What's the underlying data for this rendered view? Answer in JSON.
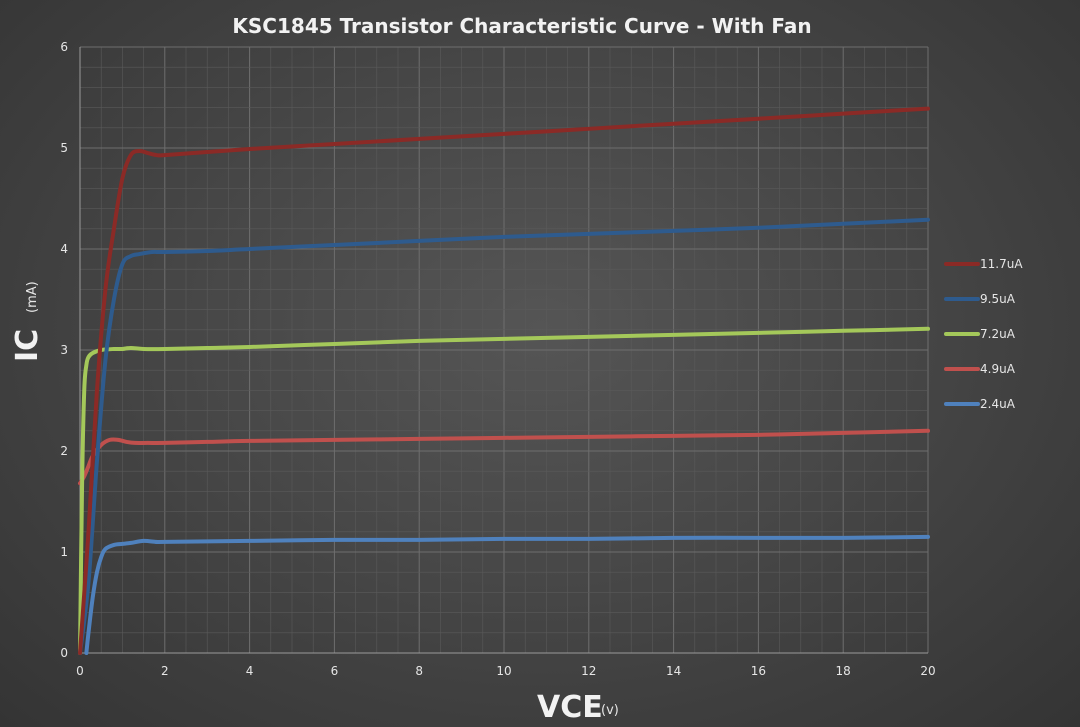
{
  "chart_data": {
    "type": "line",
    "title": "KSC1845 Transistor Characteristic Curve - With Fan",
    "xlabel": "VCE",
    "xlabel_unit": "(v)",
    "ylabel": "IC",
    "ylabel_unit": "(mA)",
    "xlim": [
      0,
      20
    ],
    "ylim": [
      0,
      6
    ],
    "x_ticks": [
      "0",
      "2",
      "4",
      "6",
      "8",
      "10",
      "12",
      "14",
      "16",
      "18",
      "20"
    ],
    "y_ticks": [
      "0",
      "1",
      "2",
      "3",
      "4",
      "5",
      "6"
    ],
    "grid": true,
    "legend_position": "right",
    "series": [
      {
        "name": "11.7uA",
        "color": "#8b2a26",
        "x": [
          0,
          0.2,
          0.4,
          0.6,
          0.8,
          1.0,
          1.2,
          1.4,
          1.6,
          1.8,
          2,
          3,
          4,
          6,
          8,
          10,
          12,
          14,
          16,
          18,
          20
        ],
        "y": [
          0,
          1.2,
          2.6,
          3.6,
          4.2,
          4.7,
          4.93,
          4.97,
          4.95,
          4.93,
          4.93,
          4.96,
          4.99,
          5.04,
          5.09,
          5.14,
          5.19,
          5.24,
          5.29,
          5.34,
          5.39
        ]
      },
      {
        "name": "9.5uA",
        "color": "#2e5b8e",
        "x": [
          0,
          0.2,
          0.4,
          0.6,
          0.8,
          1.0,
          1.2,
          1.4,
          1.7,
          2,
          3,
          4,
          6,
          8,
          10,
          12,
          14,
          16,
          18,
          20
        ],
        "y": [
          0,
          0.7,
          1.9,
          2.9,
          3.5,
          3.85,
          3.93,
          3.95,
          3.97,
          3.97,
          3.98,
          4.0,
          4.04,
          4.08,
          4.12,
          4.15,
          4.18,
          4.21,
          4.25,
          4.29
        ]
      },
      {
        "name": "7.2uA",
        "color": "#a4c85a",
        "x": [
          0,
          0.05,
          0.1,
          0.15,
          0.2,
          0.3,
          0.5,
          0.8,
          1.0,
          1.2,
          1.5,
          2,
          3,
          4,
          6,
          8,
          10,
          12,
          14,
          16,
          18,
          20
        ],
        "y": [
          0,
          1.7,
          2.6,
          2.85,
          2.93,
          2.97,
          3.0,
          3.01,
          3.01,
          3.02,
          3.01,
          3.01,
          3.02,
          3.03,
          3.06,
          3.09,
          3.11,
          3.13,
          3.15,
          3.17,
          3.19,
          3.21
        ]
      },
      {
        "name": "4.9uA",
        "color": "#c0504d",
        "x": [
          0,
          0.1,
          0.2,
          0.3,
          0.5,
          0.7,
          0.9,
          1.1,
          1.3,
          1.6,
          2,
          3,
          4,
          6,
          8,
          10,
          12,
          14,
          16,
          18,
          20
        ],
        "y": [
          1.68,
          1.75,
          1.85,
          1.95,
          2.06,
          2.11,
          2.11,
          2.09,
          2.08,
          2.08,
          2.08,
          2.09,
          2.1,
          2.11,
          2.12,
          2.13,
          2.14,
          2.15,
          2.16,
          2.18,
          2.2
        ]
      },
      {
        "name": "2.4uA",
        "color": "#4f81bd",
        "x": [
          0.15,
          0.2,
          0.3,
          0.4,
          0.5,
          0.6,
          0.8,
          1.0,
          1.2,
          1.5,
          1.8,
          2,
          4,
          6,
          8,
          10,
          12,
          14,
          16,
          18,
          20
        ],
        "y": [
          0,
          0.2,
          0.55,
          0.8,
          0.95,
          1.03,
          1.07,
          1.08,
          1.09,
          1.11,
          1.1,
          1.1,
          1.11,
          1.12,
          1.12,
          1.13,
          1.13,
          1.14,
          1.14,
          1.14,
          1.15
        ]
      }
    ]
  }
}
